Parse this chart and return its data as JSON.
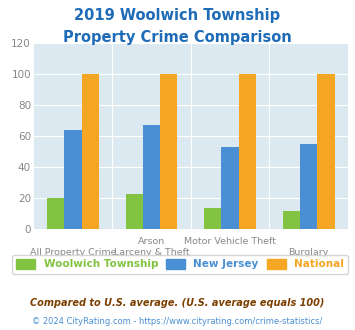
{
  "title_line1": "2019 Woolwich Township",
  "title_line2": "Property Crime Comparison",
  "title_color": "#1e6bb8",
  "cat_labels_top": [
    "",
    "Arson",
    "Motor Vehicle Theft",
    ""
  ],
  "cat_labels_bottom": [
    "All Property Crime",
    "Larceny & Theft",
    "",
    "Burglary"
  ],
  "woolwich": [
    20,
    23,
    14,
    12
  ],
  "new_jersey": [
    64,
    67,
    53,
    55
  ],
  "national": [
    100,
    100,
    100,
    100
  ],
  "woolwich_color": "#82c341",
  "nj_color": "#4a8fd4",
  "national_color": "#f5a623",
  "background_color": "#dce9f0",
  "ylim": [
    0,
    120
  ],
  "yticks": [
    0,
    20,
    40,
    60,
    80,
    100,
    120
  ],
  "footnote1": "Compared to U.S. average. (U.S. average equals 100)",
  "footnote2": "© 2024 CityRating.com - https://www.cityrating.com/crime-statistics/",
  "footnote1_color": "#7b3f00",
  "footnote2_color": "#4a8fd4",
  "legend_labels": [
    "Woolwich Township",
    "New Jersey",
    "National"
  ],
  "bar_width": 0.22
}
